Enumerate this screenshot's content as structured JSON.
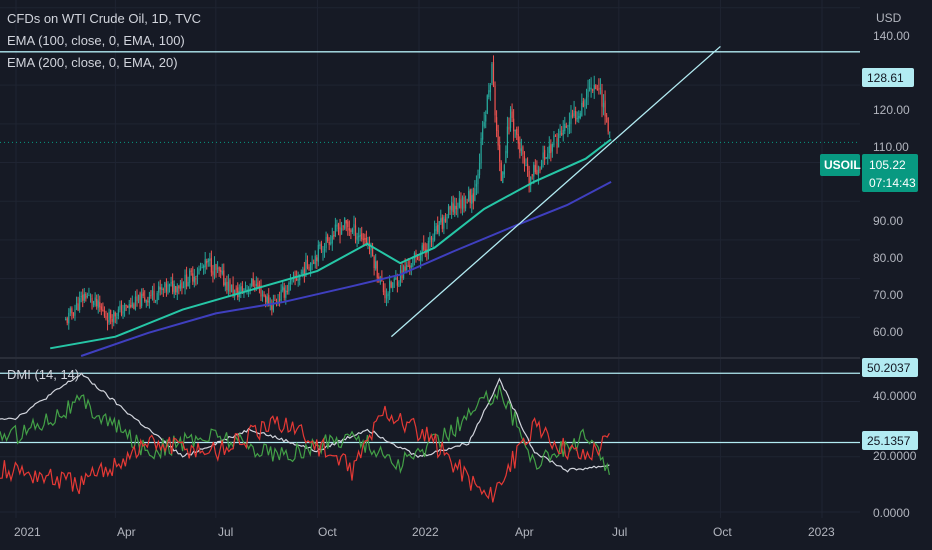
{
  "legend": {
    "title": "CFDs on WTI Crude Oil, 1D, TVC",
    "ema1": "EMA (100, close, 0, EMA, 100)",
    "ema2": "EMA (200, close, 0, EMA, 20)",
    "dmi": "DMI (14, 14)"
  },
  "axis": {
    "currency": "USD",
    "price_ticks": [
      "140.00",
      "120.00",
      "110.00",
      "90.00",
      "80.00",
      "70.00",
      "60.00"
    ],
    "dmi_ticks": [
      "40.0000",
      "20.0000",
      "0.0000"
    ],
    "time_ticks": [
      "2021",
      "Apr",
      "Jul",
      "Oct",
      "2022",
      "Apr",
      "Jul",
      "Oct",
      "2023"
    ]
  },
  "tags": {
    "level_high": "128.61",
    "symbol": "USOIL",
    "last_price": "105.22",
    "countdown": "07:14:43",
    "dmi_high": "50.2037",
    "dmi_low": "25.1357"
  },
  "colors": {
    "background": "#161a25",
    "candle_up": "#26a69a",
    "candle_down": "#ef5350",
    "ema100": "#26c6a6",
    "ema200": "#3f3fbf",
    "hline": "#b2ebf2",
    "adx": "#d1d4dc",
    "di_plus": "#43a047",
    "di_minus": "#e53935",
    "price_tag": "#089981"
  },
  "chart_data": [
    {
      "type": "candlestick",
      "title": "CFDs on WTI Crude Oil, 1D, TVC",
      "ylabel": "USD",
      "ylim": [
        50,
        142
      ],
      "x": [
        "2021",
        "Apr",
        "Jul",
        "Oct",
        "2022",
        "Apr",
        "Jul",
        "Oct",
        "2023"
      ],
      "close_path": [
        [
          "2021-02-15",
          59
        ],
        [
          "2021-03-05",
          66
        ],
        [
          "2021-03-25",
          60
        ],
        [
          "2021-04-15",
          63
        ],
        [
          "2021-05-05",
          66
        ],
        [
          "2021-06-01",
          69
        ],
        [
          "2021-06-25",
          74
        ],
        [
          "2021-07-19",
          66
        ],
        [
          "2021-08-05",
          69
        ],
        [
          "2021-08-20",
          63
        ],
        [
          "2021-09-15",
          71
        ],
        [
          "2021-10-10",
          80
        ],
        [
          "2021-10-25",
          84
        ],
        [
          "2021-11-15",
          80
        ],
        [
          "2021-12-01",
          66
        ],
        [
          "2021-12-15",
          71
        ],
        [
          "2022-01-10",
          79
        ],
        [
          "2022-01-31",
          88
        ],
        [
          "2022-02-20",
          92
        ],
        [
          "2022-03-08",
          124
        ],
        [
          "2022-03-16",
          95
        ],
        [
          "2022-03-25",
          113
        ],
        [
          "2022-04-10",
          95
        ],
        [
          "2022-04-30",
          104
        ],
        [
          "2022-05-20",
          111
        ],
        [
          "2022-06-08",
          121
        ],
        [
          "2022-06-15",
          118
        ],
        [
          "2022-06-24",
          105
        ]
      ],
      "series": [
        {
          "name": "EMA (100, close, 0, EMA, 100)",
          "points": [
            [
              "2021-02-01",
              52
            ],
            [
              "2021-04-01",
              55
            ],
            [
              "2021-06-01",
              62
            ],
            [
              "2021-08-01",
              67
            ],
            [
              "2021-10-01",
              72
            ],
            [
              "2021-11-15",
              79
            ],
            [
              "2021-12-15",
              74
            ],
            [
              "2022-01-15",
              78
            ],
            [
              "2022-03-01",
              88
            ],
            [
              "2022-04-15",
              95
            ],
            [
              "2022-06-01",
              101
            ],
            [
              "2022-06-24",
              106
            ]
          ]
        },
        {
          "name": "EMA (200, close, 0, EMA, 20)",
          "points": [
            [
              "2021-03-01",
              50
            ],
            [
              "2021-05-01",
              56
            ],
            [
              "2021-07-01",
              61
            ],
            [
              "2021-09-01",
              64
            ],
            [
              "2021-11-01",
              68
            ],
            [
              "2021-12-15",
              71
            ],
            [
              "2022-02-01",
              77
            ],
            [
              "2022-04-01",
              84
            ],
            [
              "2022-05-15",
              89
            ],
            [
              "2022-06-24",
              95
            ]
          ]
        }
      ],
      "annotations": [
        {
          "type": "horizontal_line",
          "value": 128.61
        },
        {
          "type": "trend_line",
          "from": [
            "2021-12-07",
            55
          ],
          "to": [
            "2022-10-01",
            130
          ]
        }
      ],
      "last_price": 105.22
    },
    {
      "type": "line",
      "title": "DMI (14, 14)",
      "ylim": [
        0,
        55
      ],
      "series": [
        {
          "name": "ADX",
          "points": [
            [
              "2021-01-01",
              34
            ],
            [
              "2021-03-01",
              50
            ],
            [
              "2021-04-15",
              35
            ],
            [
              "2021-06-01",
              20
            ],
            [
              "2021-08-01",
              30
            ],
            [
              "2021-10-01",
              22
            ],
            [
              "2021-11-15",
              30
            ],
            [
              "2021-12-31",
              20
            ],
            [
              "2022-02-15",
              25
            ],
            [
              "2022-03-15",
              48
            ],
            [
              "2022-04-15",
              22
            ],
            [
              "2022-05-15",
              15
            ],
            [
              "2022-06-24",
              17
            ]
          ]
        },
        {
          "name": "DI+",
          "points": [
            [
              "2021-01-01",
              28
            ],
            [
              "2021-03-01",
              40
            ],
            [
              "2021-05-01",
              22
            ],
            [
              "2021-07-01",
              28
            ],
            [
              "2021-09-01",
              20
            ],
            [
              "2021-11-01",
              28
            ],
            [
              "2021-12-15",
              17
            ],
            [
              "2022-02-01",
              30
            ],
            [
              "2022-03-15",
              45
            ],
            [
              "2022-04-15",
              18
            ],
            [
              "2022-06-01",
              27
            ],
            [
              "2022-06-24",
              15
            ]
          ]
        },
        {
          "name": "DI-",
          "points": [
            [
              "2021-01-01",
              15
            ],
            [
              "2021-03-01",
              10
            ],
            [
              "2021-05-01",
              25
            ],
            [
              "2021-07-01",
              22
            ],
            [
              "2021-09-01",
              33
            ],
            [
              "2021-11-01",
              15
            ],
            [
              "2021-12-01",
              37
            ],
            [
              "2022-01-15",
              25
            ],
            [
              "2022-03-05",
              5
            ],
            [
              "2022-04-15",
              30
            ],
            [
              "2022-05-30",
              20
            ],
            [
              "2022-06-24",
              27
            ]
          ]
        }
      ],
      "annotations": [
        {
          "type": "horizontal_line",
          "value": 50.2037
        },
        {
          "type": "horizontal_line",
          "value": 25.1357
        }
      ]
    }
  ]
}
